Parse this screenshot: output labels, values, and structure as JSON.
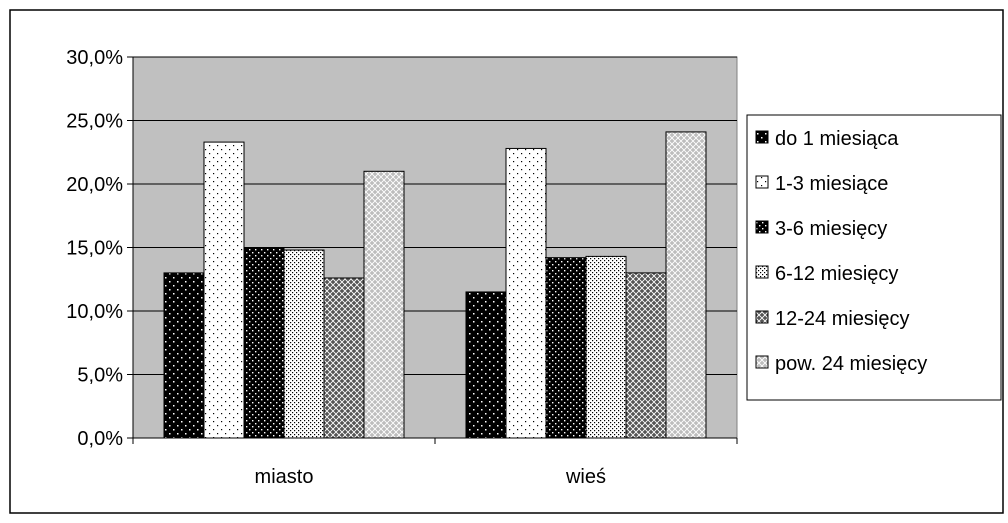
{
  "chart_data": {
    "type": "bar",
    "categories": [
      "miasto",
      "wieś"
    ],
    "series": [
      {
        "name": "do 1 miesiąca",
        "values": [
          13.0,
          11.5
        ]
      },
      {
        "name": "1-3 miesiące",
        "values": [
          23.3,
          22.8
        ]
      },
      {
        "name": "3-6 miesięcy",
        "values": [
          15.0,
          14.2
        ]
      },
      {
        "name": "6-12 miesięcy",
        "values": [
          14.8,
          14.3
        ]
      },
      {
        "name": "12-24 miesięcy",
        "values": [
          12.6,
          13.0
        ]
      },
      {
        "name": "pow. 24 miesięcy",
        "values": [
          21.0,
          24.1
        ]
      }
    ],
    "ylim": [
      0,
      30
    ],
    "yticks": [
      0,
      5,
      10,
      15,
      20,
      25,
      30
    ],
    "ytick_labels": [
      "0,0%",
      "5,0%",
      "10,0%",
      "15,0%",
      "20,0%",
      "25,0%",
      "30,0%"
    ],
    "title": "",
    "xlabel": "",
    "ylabel": "",
    "grid": true,
    "legend_position": "right",
    "plot_background": "#c0c0c0",
    "series_patterns": [
      "black-white-dots",
      "white-black-dots",
      "black-checker",
      "light-dense-dots",
      "dark-crosshatch",
      "light-crosshatch"
    ]
  }
}
